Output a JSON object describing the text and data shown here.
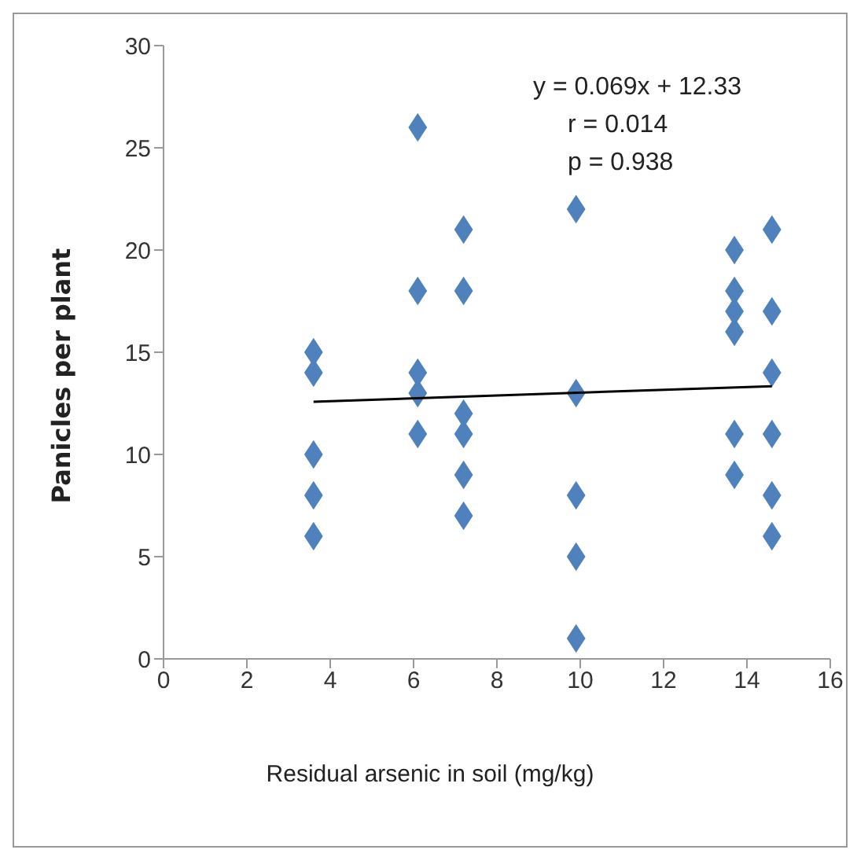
{
  "chart_data": {
    "type": "scatter",
    "xlabel": "Residual arsenic in soil (mg/kg)",
    "ylabel": "Panicles per plant",
    "annotations": [
      "y = 0.069x + 12.33",
      "r  = 0.014",
      "p = 0.938"
    ],
    "xlim": [
      0,
      16
    ],
    "xticks": [
      0,
      2,
      4,
      6,
      8,
      10,
      12,
      14,
      16
    ],
    "ylim": [
      0,
      30
    ],
    "yticks": [
      0,
      5,
      10,
      15,
      20,
      25,
      30
    ],
    "grid": false,
    "legend": false,
    "marker": "diamond",
    "series": [
      {
        "type": "scatter",
        "color": "#4f81bd",
        "x": [
          3.6,
          3.6,
          3.6,
          3.6,
          3.6,
          6.1,
          6.1,
          6.1,
          6.1,
          6.1,
          7.2,
          7.2,
          7.2,
          7.2,
          7.2,
          7.2,
          9.9,
          9.9,
          9.9,
          9.9,
          9.9,
          13.7,
          13.7,
          13.7,
          13.7,
          13.7,
          13.7,
          14.6,
          14.6,
          14.6,
          14.6,
          14.6,
          14.6
        ],
        "values": [
          15,
          14,
          10,
          8,
          6,
          26,
          18,
          14,
          13,
          11,
          21,
          18,
          12,
          11,
          9,
          7,
          22,
          13,
          8,
          5,
          1,
          20,
          18,
          17,
          16,
          11,
          9,
          21,
          17,
          14,
          11,
          8,
          6
        ]
      },
      {
        "type": "line",
        "color": "#000000",
        "marker": "none",
        "line_style": "solid",
        "x": [
          3.6,
          14.6
        ],
        "values": [
          12.58,
          13.34
        ]
      }
    ]
  }
}
